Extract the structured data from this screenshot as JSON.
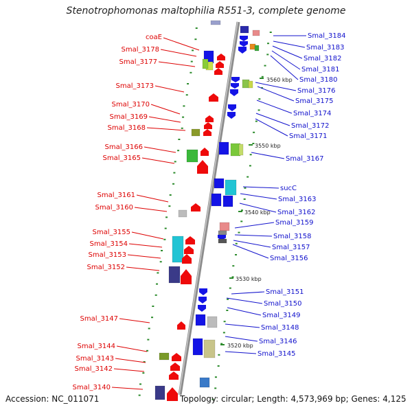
{
  "title": "Stenotrophomonas maltophilia R551-3, complete genome",
  "accession": "Accession: NC_011071",
  "summary": "Topology: circular; Length: 4,573,969 bp; Genes: 4,125",
  "colors": {
    "left_label": "#dd0000",
    "right_label": "#1010cc",
    "backbone": "#999999",
    "ticks": "#2a8a2a"
  },
  "scale_labels": [
    {
      "text": "3560 kbp"
    },
    {
      "text": "3550 kbp"
    },
    {
      "text": "3540 kbp"
    },
    {
      "text": "3530 kbp"
    },
    {
      "text": "3520 kbp"
    }
  ],
  "left_genes": [
    {
      "name": "coaE"
    },
    {
      "name": "Smal_3178"
    },
    {
      "name": "Smal_3177"
    },
    {
      "name": "Smal_3173"
    },
    {
      "name": "Smal_3170"
    },
    {
      "name": "Smal_3169"
    },
    {
      "name": "Smal_3168"
    },
    {
      "name": "Smal_3166"
    },
    {
      "name": "Smal_3165"
    },
    {
      "name": "Smal_3161"
    },
    {
      "name": "Smal_3160"
    },
    {
      "name": "Smal_3155"
    },
    {
      "name": "Smal_3154"
    },
    {
      "name": "Smal_3153"
    },
    {
      "name": "Smal_3152"
    },
    {
      "name": "Smal_3147"
    },
    {
      "name": "Smal_3144"
    },
    {
      "name": "Smal_3143"
    },
    {
      "name": "Smal_3142"
    },
    {
      "name": "Smal_3140"
    }
  ],
  "right_genes": [
    {
      "name": "Smal_3184"
    },
    {
      "name": "Smal_3183"
    },
    {
      "name": "Smal_3182"
    },
    {
      "name": "Smal_3181"
    },
    {
      "name": "Smal_3180"
    },
    {
      "name": "Smal_3176"
    },
    {
      "name": "Smal_3175"
    },
    {
      "name": "Smal_3174"
    },
    {
      "name": "Smal_3172"
    },
    {
      "name": "Smal_3171"
    },
    {
      "name": "Smal_3167"
    },
    {
      "name": "sucC"
    },
    {
      "name": "Smal_3163"
    },
    {
      "name": "Smal_3162"
    },
    {
      "name": "Smal_3159"
    },
    {
      "name": "Smal_3158"
    },
    {
      "name": "Smal_3157"
    },
    {
      "name": "Smal_3156"
    },
    {
      "name": "Smal_3151"
    },
    {
      "name": "Smal_3150"
    },
    {
      "name": "Smal_3149"
    },
    {
      "name": "Smal_3148"
    },
    {
      "name": "Smal_3146"
    },
    {
      "name": "Smal_3145"
    }
  ]
}
